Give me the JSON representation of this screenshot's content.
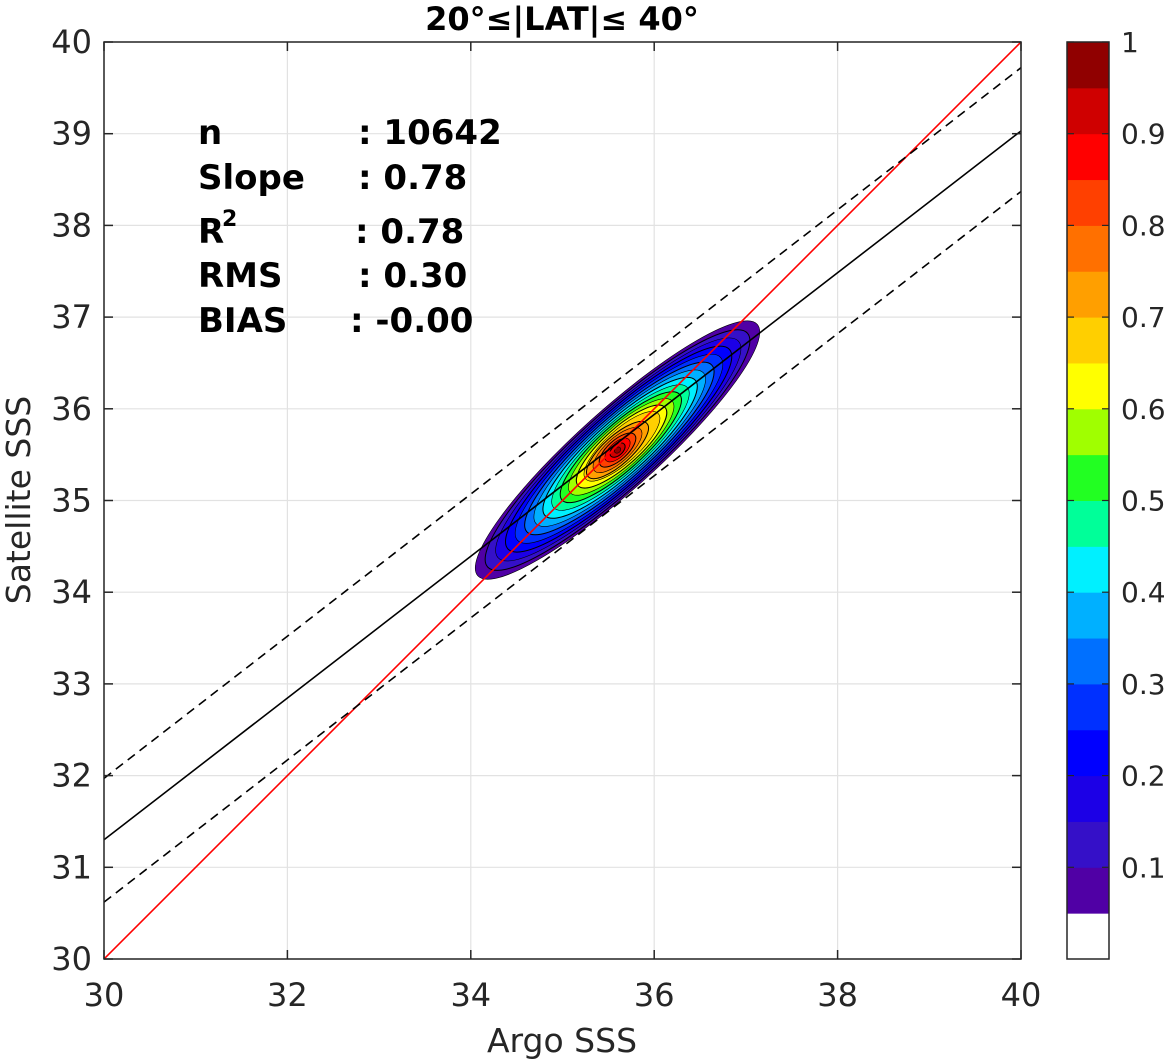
{
  "chart_data": {
    "type": "contour",
    "title": "20°≤|LAT|≤ 40°",
    "xlabel": "Argo SSS",
    "ylabel": "Satellite SSS",
    "xlim": [
      30,
      40
    ],
    "ylim": [
      30,
      40
    ],
    "xticks": [
      "30",
      "32",
      "34",
      "36",
      "38",
      "40"
    ],
    "yticks": [
      "30",
      "31",
      "32",
      "33",
      "34",
      "35",
      "36",
      "37",
      "38",
      "39",
      "40"
    ],
    "grid": true,
    "stats": [
      {
        "label": "n",
        "value": ": 10642"
      },
      {
        "label": "Slope",
        "value": ": 0.78"
      },
      {
        "label": "R",
        "sup": "2",
        "value": ": 0.78"
      },
      {
        "label": "RMS",
        "value": ": 0.30"
      },
      {
        "label": "BIAS",
        "value": ": -0.00"
      }
    ],
    "lines": {
      "one_to_one": {
        "x": [
          30,
          40
        ],
        "y": [
          30,
          40
        ],
        "color": "#ff0000",
        "style": "solid"
      },
      "regression": {
        "x": [
          30,
          40
        ],
        "y": [
          31.3,
          39.03
        ],
        "color": "#000000",
        "style": "solid"
      },
      "upper_bound": {
        "x": [
          30,
          40
        ],
        "y": [
          31.97,
          39.72
        ],
        "color": "#000000",
        "style": "dashed"
      },
      "lower_bound": {
        "x": [
          30,
          40
        ],
        "y": [
          30.62,
          38.37
        ],
        "color": "#000000",
        "style": "dashed"
      }
    },
    "density": {
      "center": [
        35.6,
        35.55
      ],
      "peak_value": 1.0,
      "note_levels": [
        0.05,
        0.1,
        0.15,
        0.2,
        0.25,
        0.3,
        0.35,
        0.4,
        0.45,
        0.5,
        0.55,
        0.6,
        0.65,
        0.7,
        0.75,
        0.8,
        0.85,
        0.9,
        0.95
      ]
    },
    "colorbar": {
      "ticks": [
        "0.1",
        "0.2",
        "0.3",
        "0.4",
        "0.5",
        "0.6",
        "0.7",
        "0.8",
        "0.9",
        "1"
      ],
      "range": [
        0,
        1
      ],
      "colors": [
        "#ffffff",
        "#5000a5",
        "#3510c8",
        "#1c00e6",
        "#0000ff",
        "#0030ff",
        "#0070ff",
        "#00b0ff",
        "#00f0ff",
        "#00ff99",
        "#22ff22",
        "#a0ff00",
        "#ffff00",
        "#ffcf00",
        "#ff9f00",
        "#ff7000",
        "#ff4000",
        "#ff0000",
        "#cf0000",
        "#900000"
      ]
    }
  }
}
